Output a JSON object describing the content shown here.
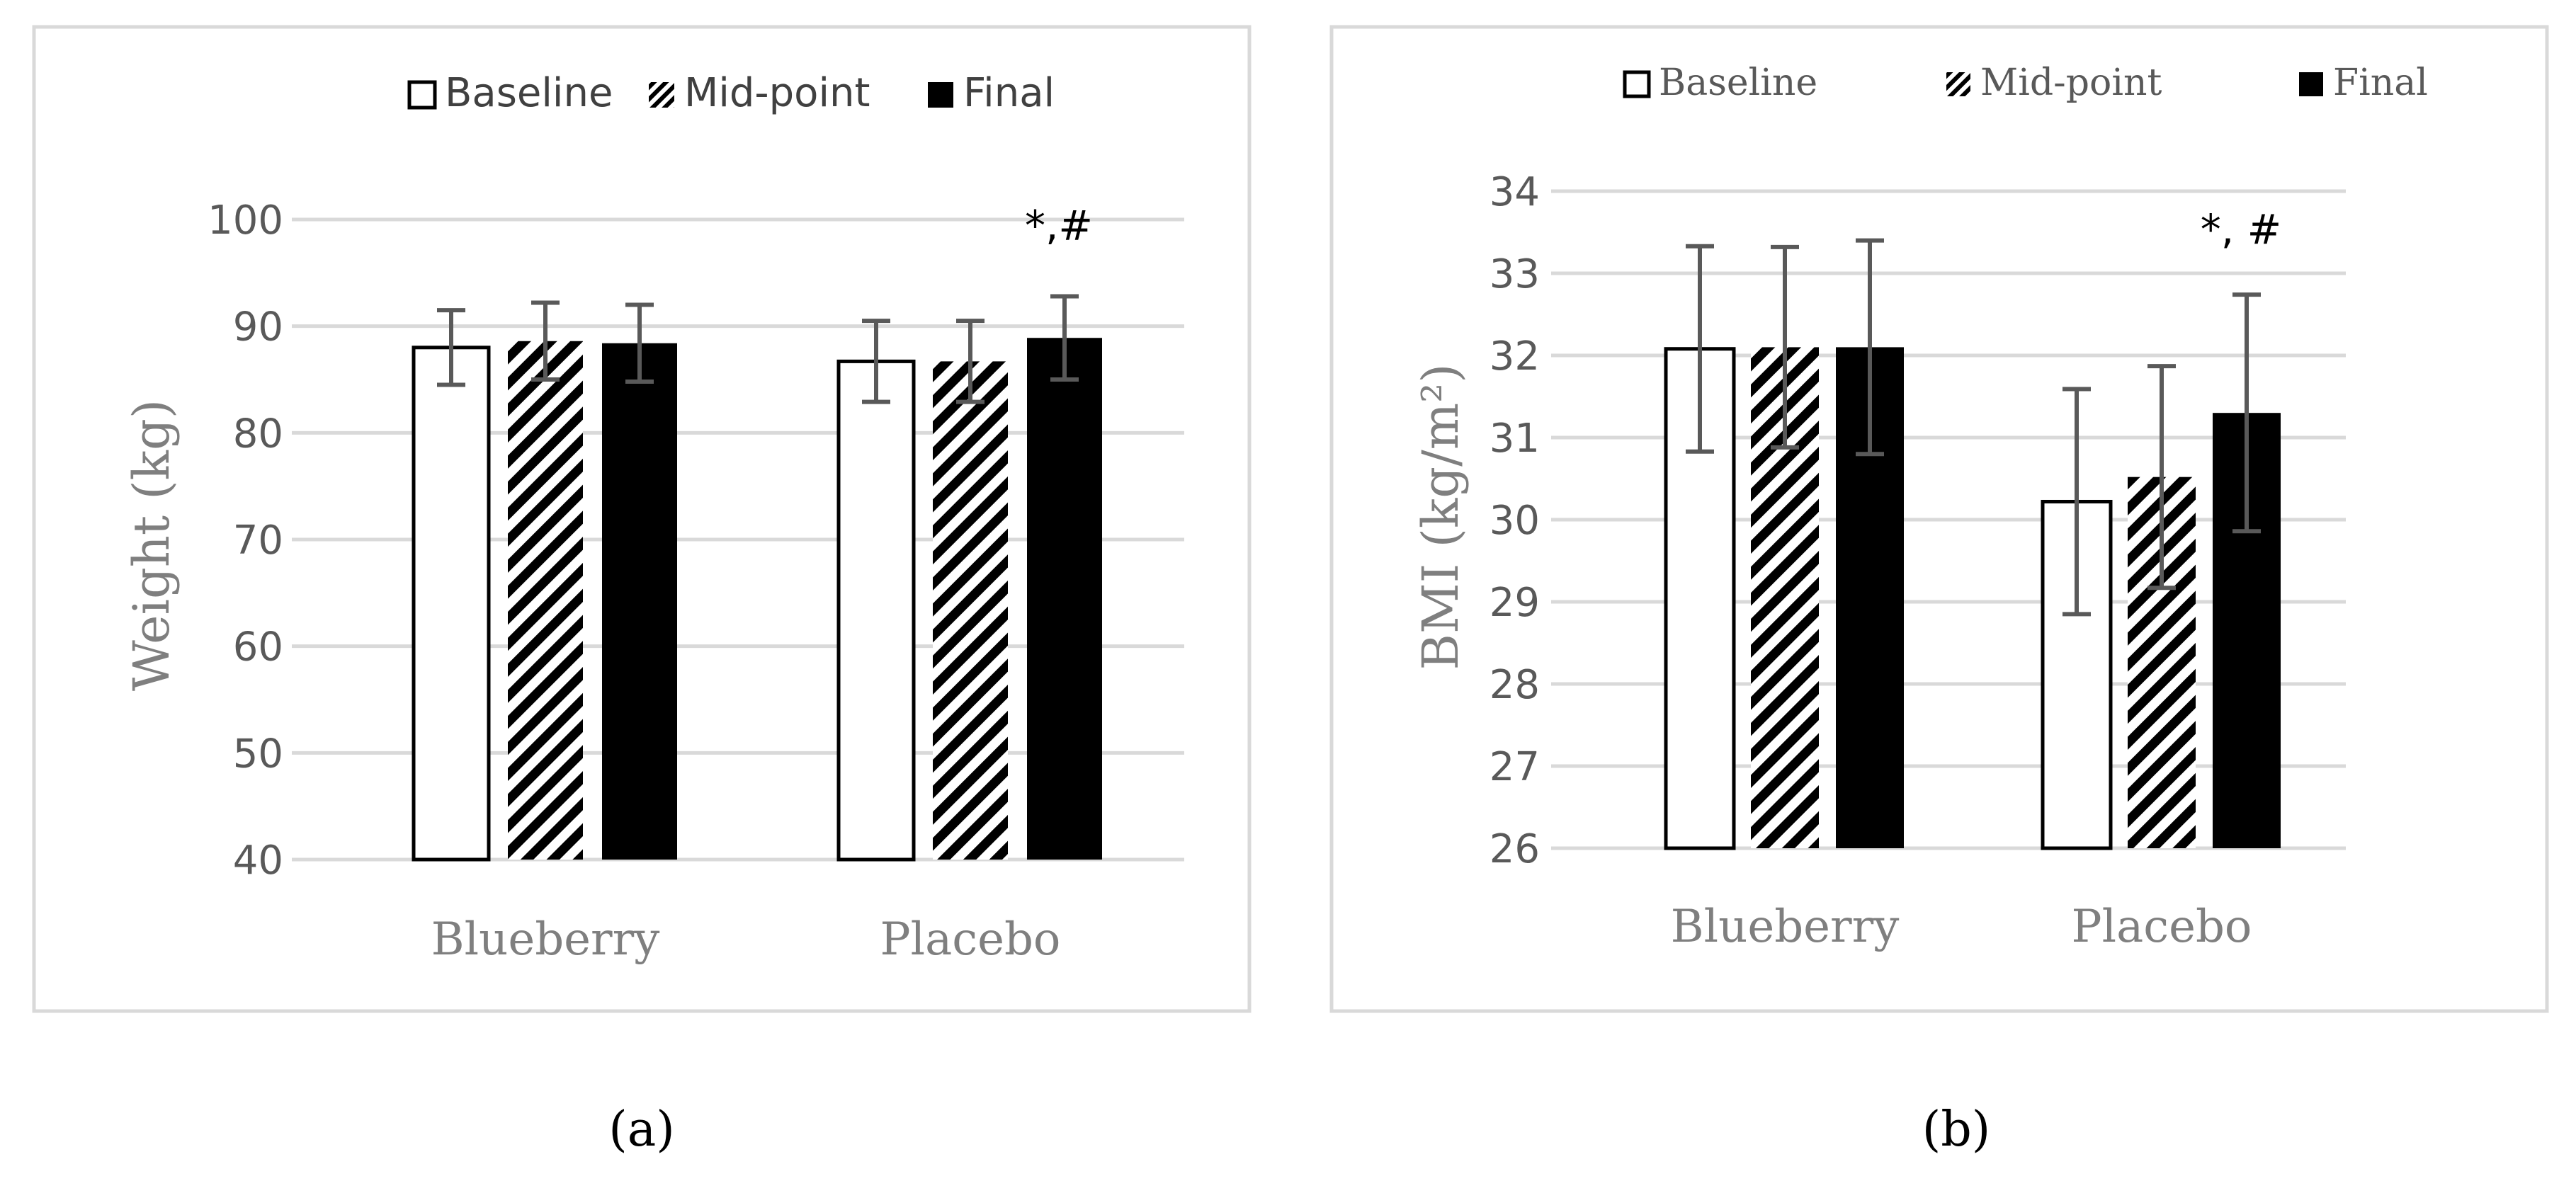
{
  "chart_data": [
    {
      "type": "bar",
      "panel_label": "(a)",
      "categories": [
        "Blueberry",
        "Placebo"
      ],
      "series": [
        {
          "name": "Baseline",
          "values": [
            88.0,
            86.7
          ],
          "errors": [
            3.5,
            3.8
          ]
        },
        {
          "name": "Mid-point",
          "values": [
            88.6,
            86.7
          ],
          "errors": [
            3.6,
            3.8
          ]
        },
        {
          "name": "Final",
          "values": [
            88.4,
            88.9
          ],
          "errors": [
            3.6,
            3.9
          ]
        }
      ],
      "title": "",
      "xlabel": "",
      "ylabel": "Weight (kg)",
      "ylim": [
        40,
        100
      ],
      "yticks": [
        "40",
        "50",
        "60",
        "70",
        "80",
        "90",
        "100"
      ],
      "annotation": {
        "text": "*,#",
        "category": "Placebo",
        "series": "Final"
      },
      "grid": true,
      "legend": "top"
    },
    {
      "type": "bar",
      "panel_label": "(b)",
      "categories": [
        "Blueberry",
        "Placebo"
      ],
      "series": [
        {
          "name": "Baseline",
          "values": [
            32.08,
            30.22
          ],
          "errors": [
            1.25,
            1.37
          ]
        },
        {
          "name": "Mid-point",
          "values": [
            32.1,
            30.52
          ],
          "errors": [
            1.22,
            1.35
          ]
        },
        {
          "name": "Final",
          "values": [
            32.1,
            31.3
          ],
          "errors": [
            1.3,
            1.44
          ]
        }
      ],
      "title": "",
      "xlabel": "",
      "ylabel": "BMI (kg/m²)",
      "ylim": [
        26,
        34
      ],
      "yticks": [
        "26",
        "27",
        "28",
        "29",
        "30",
        "31",
        "32",
        "33",
        "34"
      ],
      "annotation": {
        "text": "*, #",
        "category": "Placebo",
        "series": "Final"
      },
      "grid": true,
      "legend": "top"
    }
  ],
  "colors": {
    "grid": "#d9d9d9",
    "frame": "#d9d9d9",
    "bar_fill_final": "#000000",
    "bar_fill_baseline": "#ffffff",
    "error_bar": "#595959"
  }
}
